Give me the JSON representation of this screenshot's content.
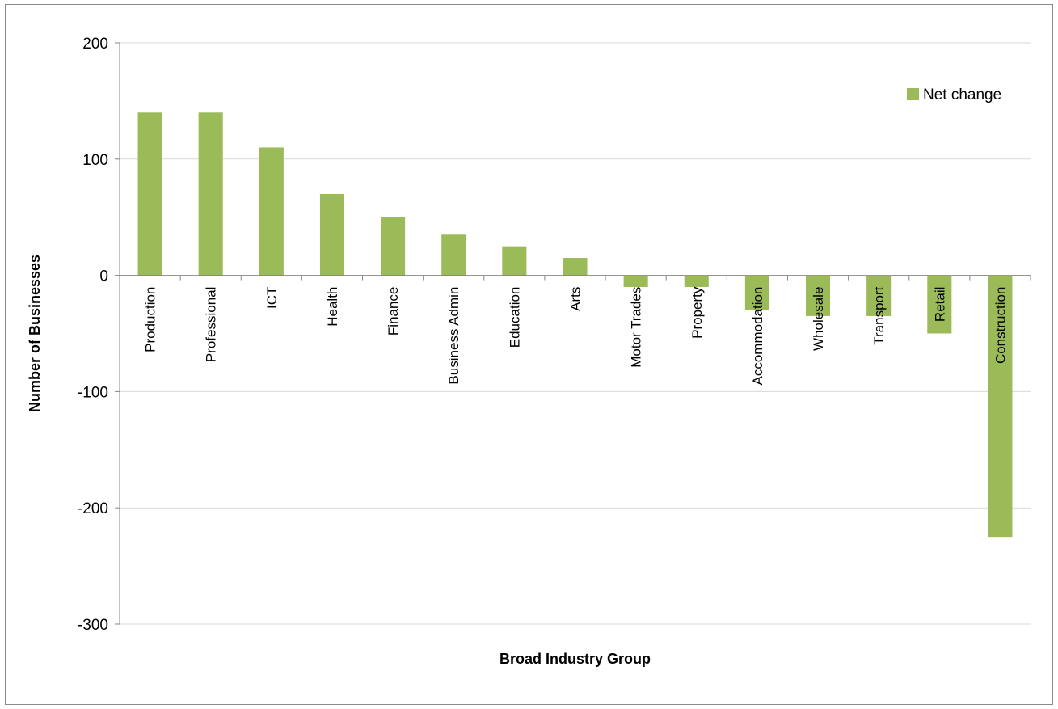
{
  "chart_data": {
    "type": "bar",
    "title": "",
    "xlabel": "Broad Industry Group",
    "ylabel": "Number of Businesses",
    "ylim": [
      -300,
      200
    ],
    "yticks": [
      200,
      100,
      0,
      -100,
      -200,
      -300
    ],
    "grid": true,
    "legend_position": "top-right",
    "categories": [
      "Production",
      "Professional",
      "ICT",
      "Health",
      "Finance",
      "Business Admin",
      "Education",
      "Arts",
      "Motor Trades",
      "Property",
      "Accommodation",
      "Wholesale",
      "Transport",
      "Retail",
      "Construction"
    ],
    "series": [
      {
        "name": "Net change",
        "color": "#9bbb59",
        "values": [
          140,
          140,
          110,
          70,
          50,
          35,
          25,
          15,
          -10,
          -10,
          -30,
          -35,
          -35,
          -50,
          -225
        ]
      }
    ]
  }
}
